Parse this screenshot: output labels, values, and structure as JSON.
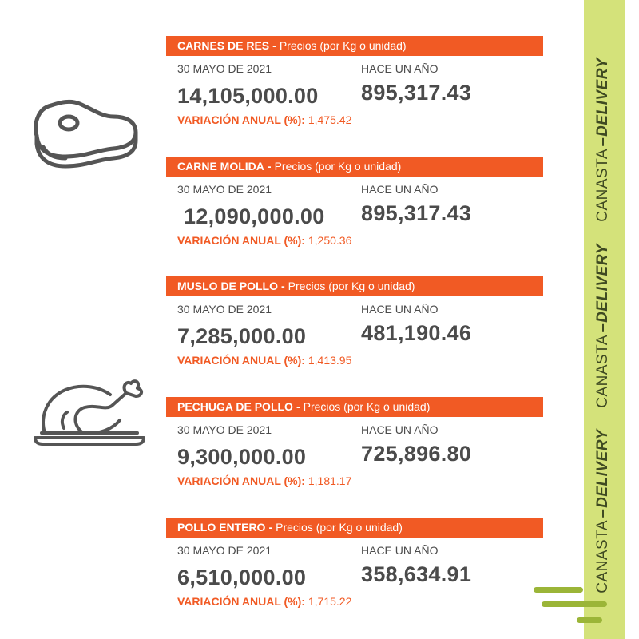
{
  "brand": {
    "part1": "CANASTA",
    "part2": "DELIVERY"
  },
  "icons": {
    "meat": "steak-icon",
    "chicken": "roast-chicken-icon"
  },
  "colors": {
    "header": "#f15a24",
    "variation": "#f15a24",
    "band": "#d4e27a",
    "text": "#4b4b4b"
  },
  "cards": [
    {
      "name": "CARNES DE RES",
      "separator": "-",
      "unit_note": "Precios (por Kg o unidad)",
      "date_label": "30 MAYO DE 2021",
      "year_label": "HACE UN AÑO",
      "current_price": "14,105,000.00",
      "year_ago_price": "895,317.43",
      "variation_label": "VARIACIÓN ANUAL (%):",
      "variation_value": "1,475.42"
    },
    {
      "name": "CARNE MOLIDA",
      "separator": "-",
      "unit_note": "Precios (por Kg o unidad)",
      "date_label": "30 MAYO DE 2021",
      "year_label": "HACE UN AÑO",
      "current_price": "12,090,000.00",
      "year_ago_price": "895,317.43",
      "variation_label": "VARIACIÓN ANUAL (%):",
      "variation_value": "1,250.36"
    },
    {
      "name": "MUSLO DE POLLO",
      "separator": "-",
      "unit_note": "Precios (por Kg o unidad)",
      "date_label": "30 MAYO DE 2021",
      "year_label": "HACE UN AÑO",
      "current_price": "7,285,000.00",
      "year_ago_price": "481,190.46",
      "variation_label": "VARIACIÓN ANUAL (%):",
      "variation_value": "1,413.95"
    },
    {
      "name": "PECHUGA DE POLLO",
      "separator": "-",
      "unit_note": "Precios (por Kg o unidad)",
      "date_label": "30 MAYO DE 2021",
      "year_label": "HACE UN AÑO",
      "current_price": "9,300,000.00",
      "year_ago_price": "725,896.80",
      "variation_label": "VARIACIÓN ANUAL (%):",
      "variation_value": "1,181.17"
    },
    {
      "name": "POLLO ENTERO",
      "separator": "-",
      "unit_note": "Precios (por Kg o unidad)",
      "date_label": "30 MAYO DE 2021",
      "year_label": "HACE UN AÑO",
      "current_price": "6,510,000.00",
      "year_ago_price": "358,634.91",
      "variation_label": "VARIACIÓN ANUAL (%):",
      "variation_value": "1,715.22"
    }
  ]
}
